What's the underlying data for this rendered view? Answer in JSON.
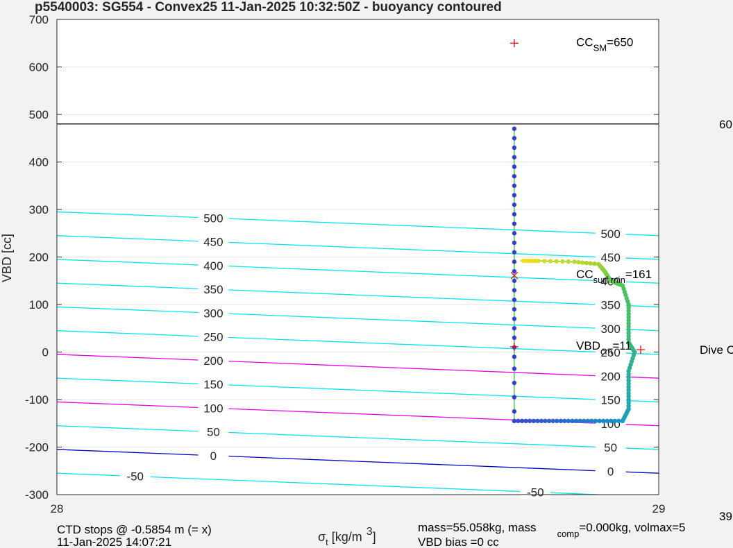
{
  "chart_data": {
    "type": "line",
    "title": "p5540003: SG554 - Convex25 11-Jan-2025 10:32:50Z - buoyancy contoured",
    "xlabel": {
      "main": "σ",
      "sub": "t",
      "rest": " [kg/m",
      "sup": "3",
      "close": "]"
    },
    "ylabel": "VBD [cc]",
    "xlim": [
      28,
      29
    ],
    "ylim": [
      -300,
      700
    ],
    "x_ticks": [
      "28",
      "29"
    ],
    "y_ticks": [
      -300,
      -200,
      -100,
      0,
      100,
      200,
      300,
      400,
      500,
      600,
      700
    ],
    "grid": true,
    "ref_line_vbd": 480,
    "contours": {
      "values": [
        500,
        450,
        400,
        350,
        300,
        250,
        200,
        150,
        100,
        50,
        0,
        -50
      ],
      "magenta": [
        200,
        100
      ],
      "blue": [
        0
      ],
      "labels_left_x": 28.26,
      "labels_right_x": 28.92,
      "left_values": [
        "500",
        "450",
        "400",
        "350",
        "300",
        "250",
        "200",
        "150",
        "100",
        "50",
        "0",
        "-50"
      ],
      "right_values": [
        "500",
        "450",
        "400",
        "350",
        "300",
        "250",
        "200",
        "150",
        "100",
        "50",
        "0",
        "-50"
      ]
    },
    "dive_points": {
      "x": 28.76,
      "y": [
        470,
        450,
        430,
        410,
        390,
        370,
        350,
        330,
        310,
        290,
        270,
        250,
        230,
        210,
        190,
        170,
        150,
        130,
        110,
        90,
        70,
        50,
        30,
        10,
        -10,
        -35,
        -65,
        -95,
        -125,
        -145
      ]
    },
    "bottom_run": {
      "y": -145,
      "x_start": 28.76,
      "x_end": 28.94
    },
    "climb_path": [
      [
        28.94,
        -145
      ],
      [
        28.95,
        -120
      ],
      [
        28.95,
        -80
      ],
      [
        28.95,
        -40
      ],
      [
        28.96,
        0
      ],
      [
        28.95,
        20
      ],
      [
        28.95,
        60
      ],
      [
        28.95,
        100
      ],
      [
        28.94,
        140
      ],
      [
        28.92,
        150
      ],
      [
        28.91,
        170
      ],
      [
        28.9,
        185
      ],
      [
        28.86,
        190
      ],
      [
        28.8,
        192
      ],
      [
        28.77,
        192
      ]
    ],
    "markers": [
      {
        "symbol": "+",
        "x": 28.76,
        "y": 650,
        "label_main": "CC",
        "label_sub": "SM",
        "label_rest": "=650"
      },
      {
        "symbol": "x",
        "x": 28.76,
        "y": 161,
        "label_main": "CC",
        "label_sub": "surf min",
        "label_rest": "=161"
      },
      {
        "symbol": "+",
        "x": 28.76,
        "y": 11,
        "label_main": "VBD",
        "label_sub": "cm",
        "label_rest": "=11"
      },
      {
        "symbol": "+",
        "x": 28.97,
        "y": 5
      }
    ],
    "edge_texts": {
      "right_600": "60",
      "right_dive": "Dive C",
      "right_bottom": "39"
    },
    "footer": {
      "line1": "CTD stops @ -0.5854 m (= x)",
      "line2": "11-Jan-2025 14:07:21",
      "mass_text": "mass=55.058kg, mass",
      "mass_sub": "comp",
      "mass_rest": "=0.000kg, volmax=5",
      "vbd_bias": "VBD bias =0 cc"
    }
  }
}
